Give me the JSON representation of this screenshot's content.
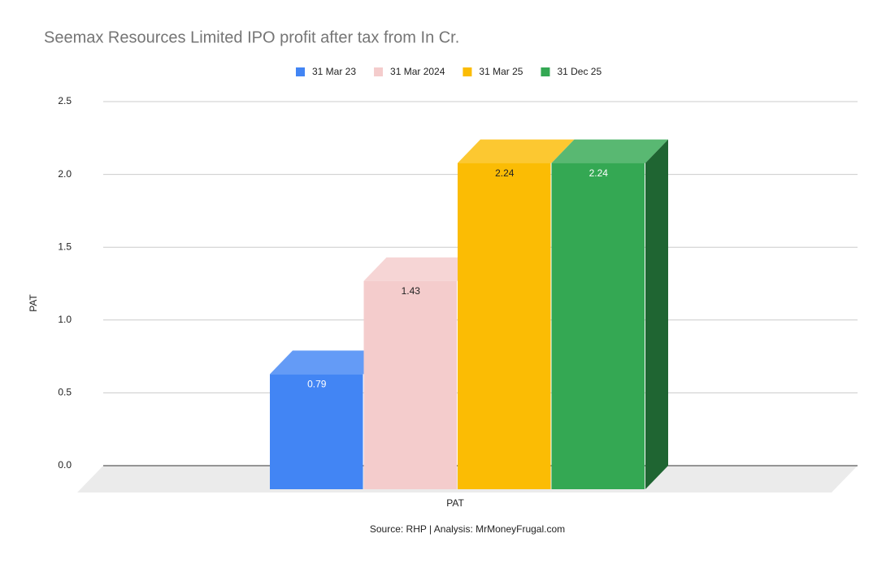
{
  "chart_data": {
    "type": "bar3d",
    "title": "Seemax Resources Limited IPO profit after tax from In Cr.",
    "categories": [
      "PAT"
    ],
    "x_label": "PAT",
    "y_label": "PAT",
    "source": "Source: RHP | Analysis: MrMoneyFrugal.com",
    "series": [
      {
        "name": "31 Mar 23",
        "color": "#4285f4",
        "values": [
          0.79
        ]
      },
      {
        "name": "31 Mar 2024",
        "color": "#f4cccc",
        "values": [
          1.43
        ]
      },
      {
        "name": "31 Mar 25",
        "color": "#fbbc04",
        "values": [
          2.24
        ]
      },
      {
        "name": "31 Dec 25",
        "color": "#34a853",
        "values": [
          2.24
        ]
      }
    ],
    "ylim": [
      0,
      2.5
    ],
    "yticks": [
      {
        "value": 0,
        "label": "0.0"
      },
      0.5,
      {
        "value": 1,
        "label": "1.0"
      },
      1.5,
      {
        "value": 2,
        "label": "2.0"
      },
      2.5
    ],
    "grid": true,
    "legend": "top"
  }
}
